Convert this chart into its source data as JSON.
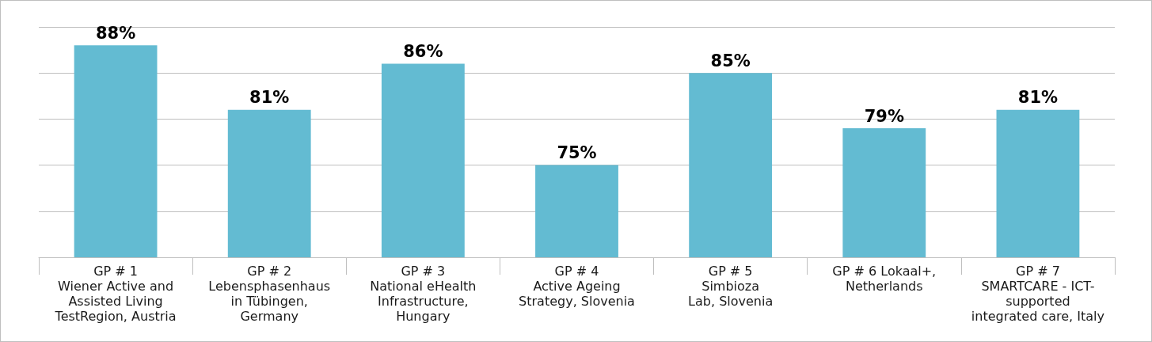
{
  "chart_data": {
    "type": "bar",
    "categories": [
      "GP # 1\nWiener Active and\nAssisted Living\nTestRegion, Austria",
      "GP # 2\nLebensphasenhaus\nin Tübingen,\nGermany",
      "GP # 3\nNational eHealth\nInfrastructure,\nHungary",
      "GP # 4\nActive Ageing\nStrategy, Slovenia",
      "GP # 5\nSimbioza\nLab, Slovenia",
      "GP # 6 Lokaal+,\nNetherlands",
      "GP # 7\nSMARTCARE - ICT-\nsupported\nintegrated care, Italy"
    ],
    "values": [
      88,
      81,
      86,
      75,
      85,
      79,
      81
    ],
    "value_labels": [
      "88%",
      "81%",
      "86%",
      "75%",
      "85%",
      "79%",
      "81%"
    ],
    "color": "#63bbd2",
    "ylim": [
      65,
      90
    ],
    "yticks": [
      {
        "value": 65,
        "label": null
      },
      {
        "value": 70,
        "label": null
      },
      {
        "value": 75,
        "label": null
      },
      {
        "value": 80,
        "label": null
      },
      {
        "value": 85,
        "label": null
      },
      {
        "value": 90,
        "label": null
      }
    ],
    "tick_labels": "x",
    "grid": "y"
  }
}
